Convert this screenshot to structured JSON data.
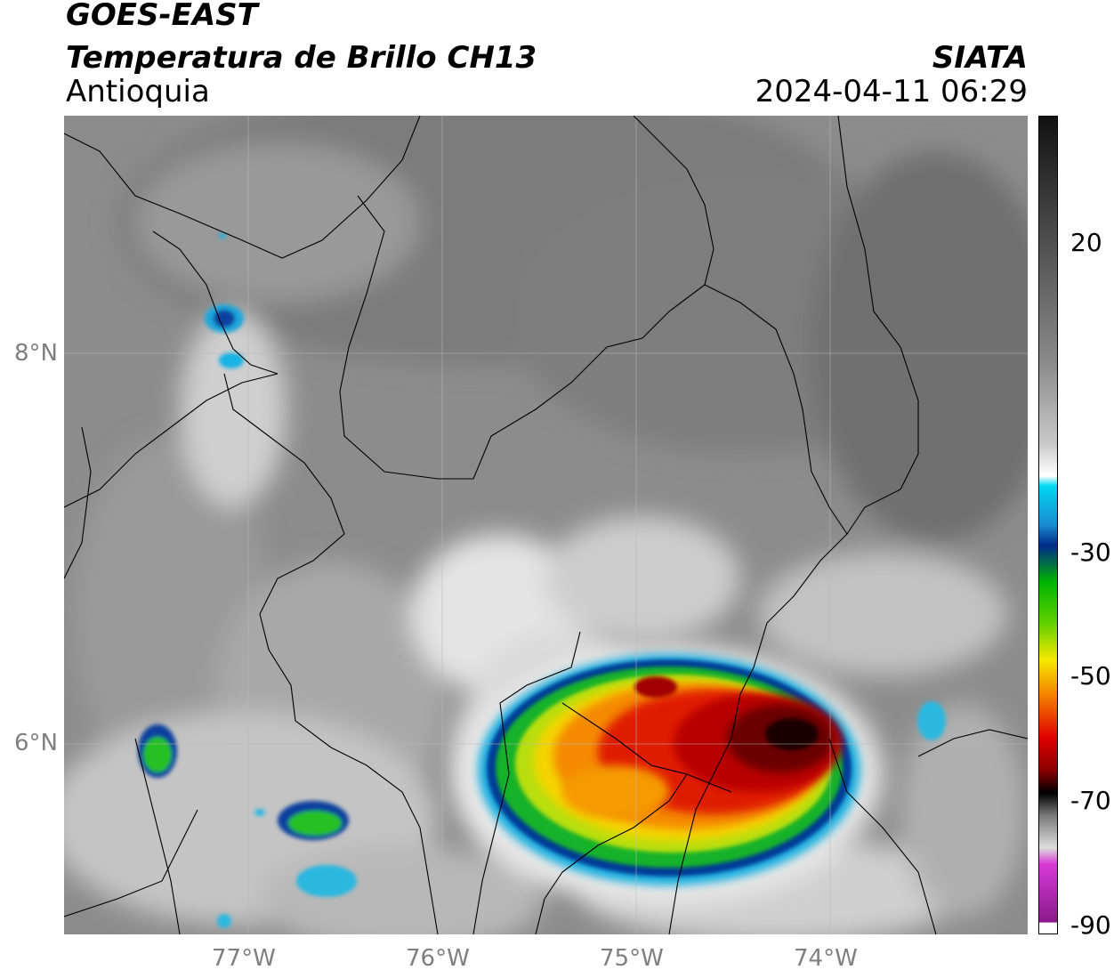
{
  "header": {
    "satellite": "GOES-EAST",
    "product": "Temperatura de Brillo CH13",
    "region": "Antioquia",
    "source": "SIATA",
    "datetime": "2024-04-11 06:29"
  },
  "map": {
    "lon_range": [
      -77.95,
      -72.98
    ],
    "lat_range": [
      5.05,
      9.25
    ],
    "lon_ticks": [
      "77°W",
      "76°W",
      "75°W",
      "74°W"
    ],
    "lat_ticks": [
      "8°N",
      "6°N"
    ],
    "gridlines": true
  },
  "colorbar": {
    "ticks": [
      "20",
      "-30",
      "-50",
      "-70",
      "-90"
    ],
    "colors": {
      "grayscale_top": "#111111",
      "grayscale_white": "#ffffff",
      "cyan": "#00d8f0",
      "blue": "#002a8a",
      "green": "#00b400",
      "yellow": "#f5e800",
      "orange": "#f58a00",
      "red": "#e00000",
      "dark_red": "#4a0000",
      "magenta": "#d63ad6",
      "purple": "#8a1a8a"
    }
  }
}
